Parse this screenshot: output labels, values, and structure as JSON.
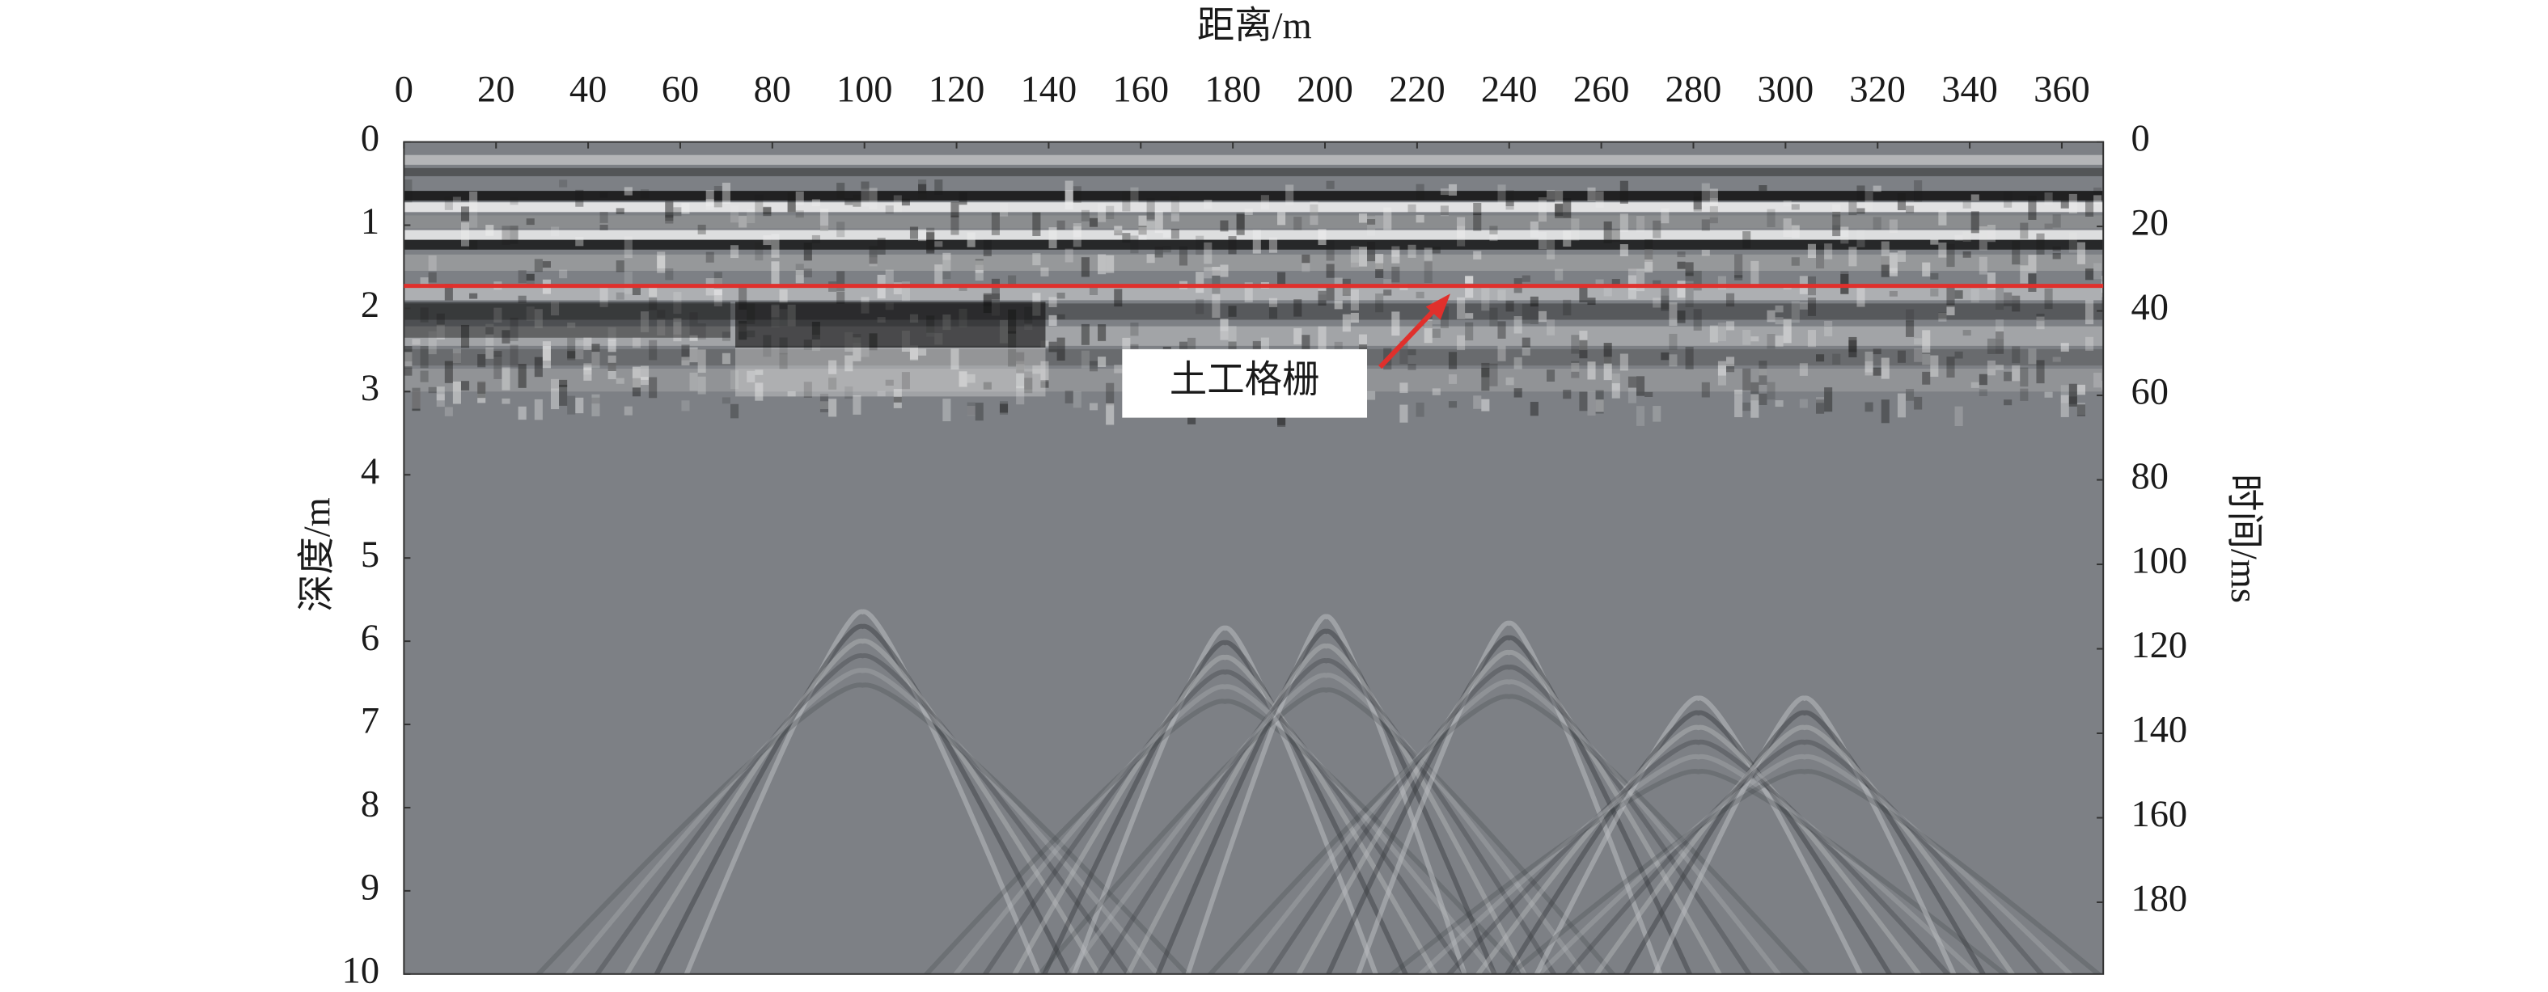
{
  "chart_data": {
    "type": "radargram",
    "xlabel": "距离/m",
    "ylabel": "深度/m",
    "y2label": "时间/ms",
    "xlim": [
      0,
      369
    ],
    "xticks": [
      0,
      20,
      40,
      60,
      80,
      100,
      120,
      140,
      160,
      180,
      200,
      220,
      240,
      260,
      280,
      300,
      320,
      340,
      360
    ],
    "ylim": [
      0,
      10
    ],
    "yticks": [
      0,
      1,
      2,
      3,
      4,
      5,
      6,
      7,
      8,
      9,
      10
    ],
    "y_inverted": true,
    "y2lim": [
      0,
      197
    ],
    "y2ticks": [
      0,
      20,
      40,
      60,
      80,
      100,
      120,
      140,
      160,
      180
    ],
    "reference_line": {
      "y": 1.73,
      "color": "#e0302c"
    },
    "annotation": {
      "text": "土工格栅"
    }
  }
}
